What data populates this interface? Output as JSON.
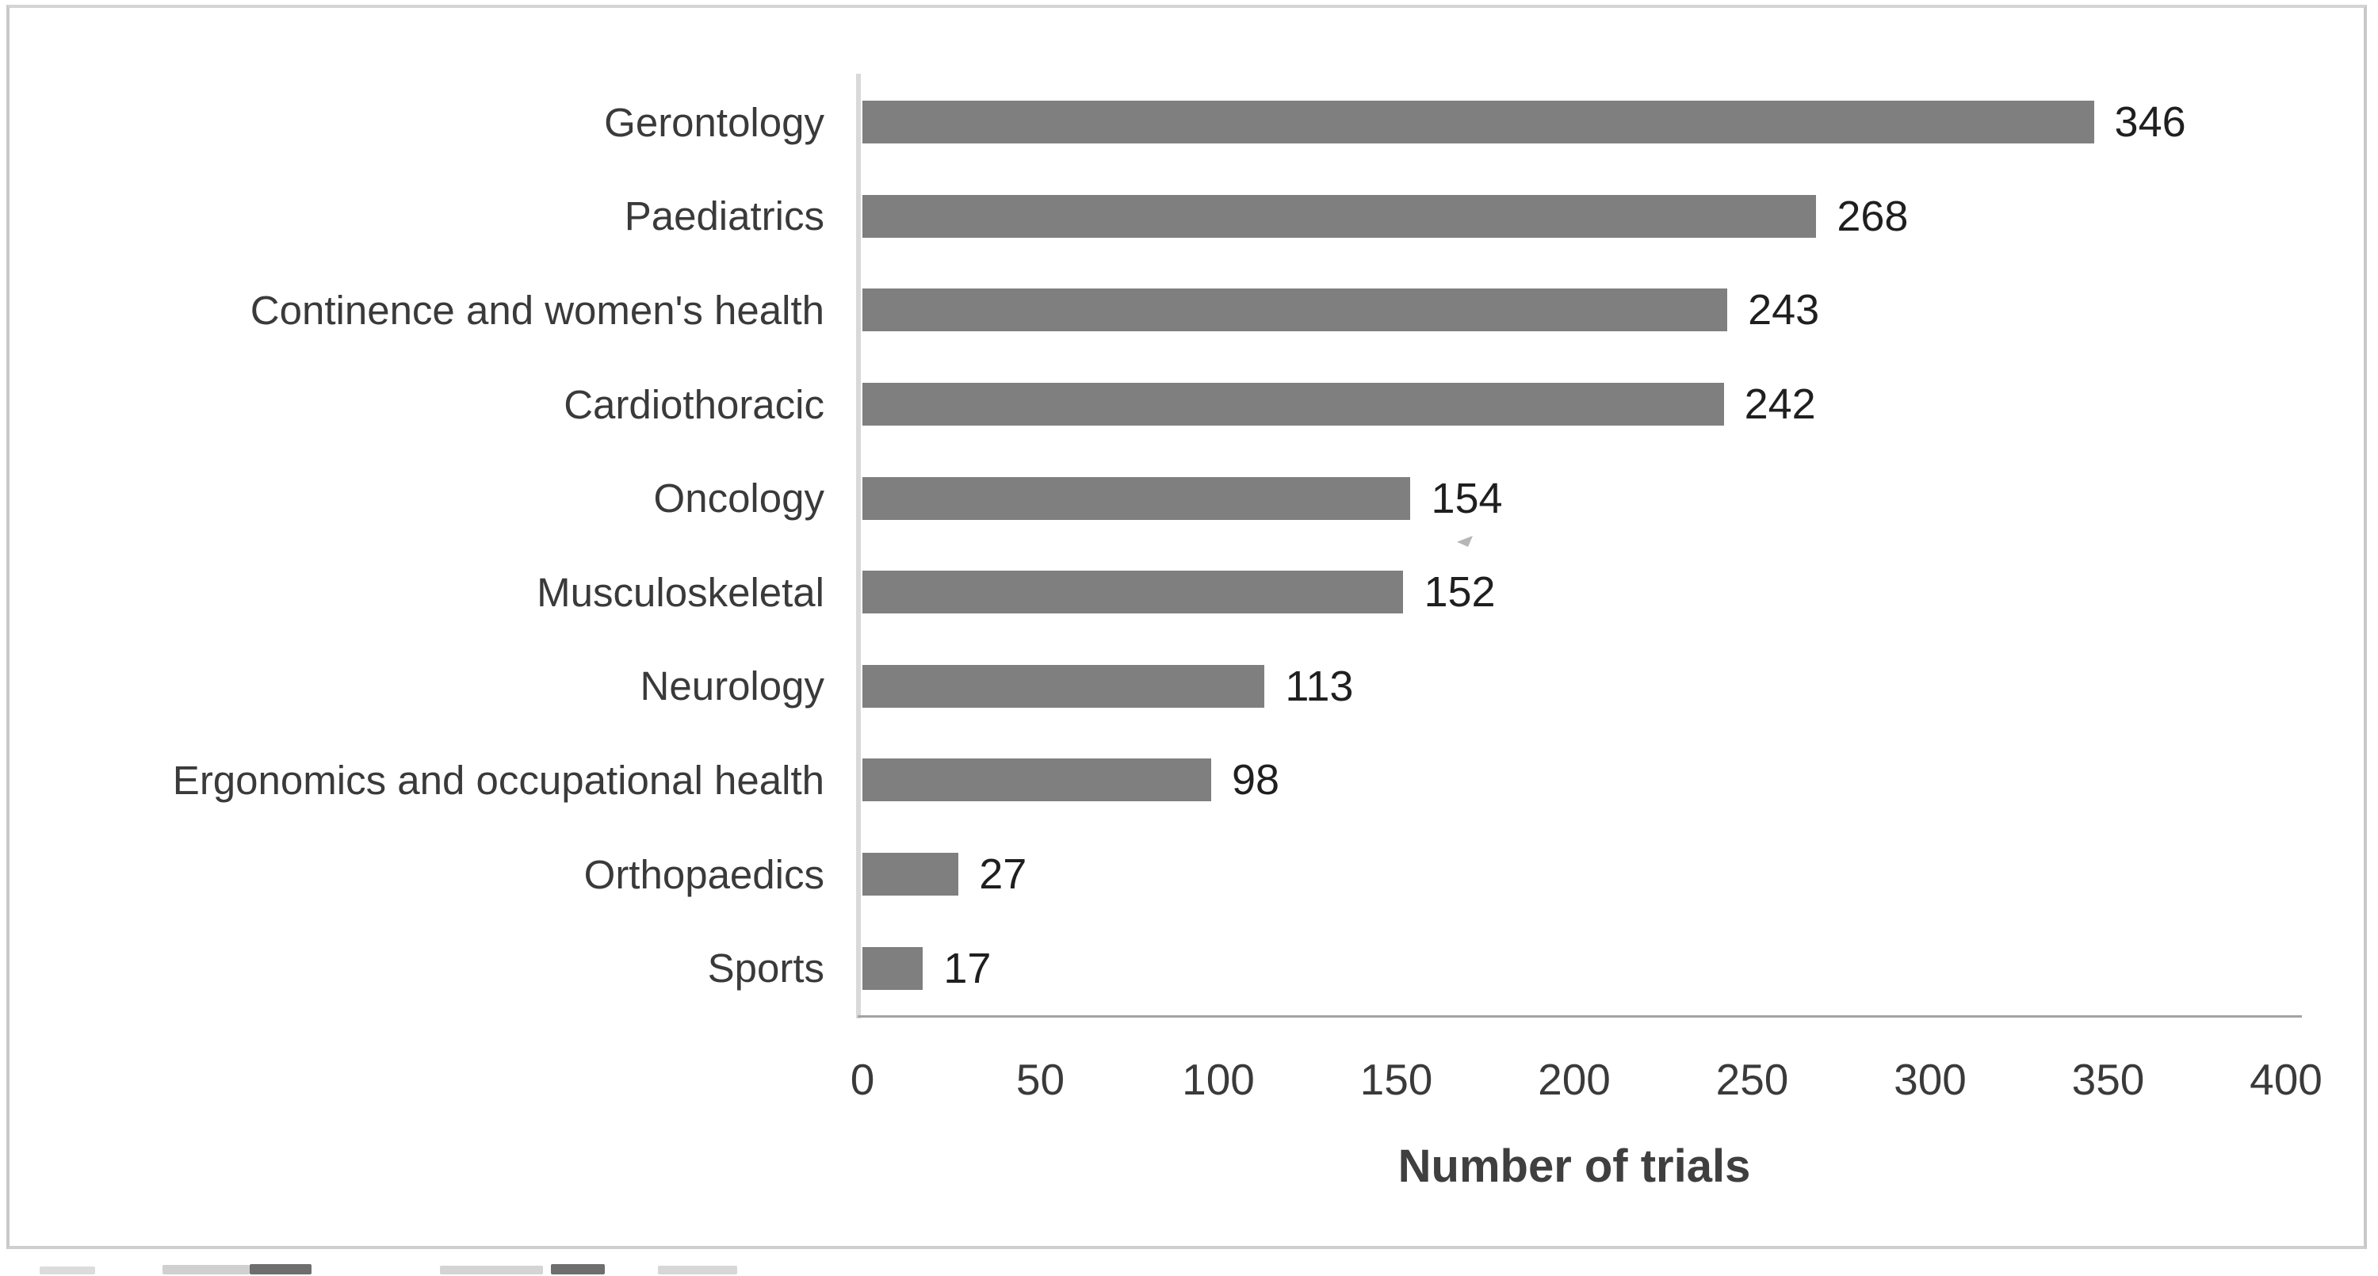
{
  "figure": {
    "background_color": "#ffffff",
    "border_color": "#c9c9c9"
  },
  "chart_data": {
    "type": "bar",
    "orientation": "horizontal",
    "title": "",
    "xlabel": "Number of trials",
    "ylabel": "",
    "categories": [
      "Gerontology",
      "Paediatrics",
      "Continence and women's health",
      "Cardiothoracic",
      "Oncology",
      "Musculoskeletal",
      "Neurology",
      "Ergonomics and occupational health",
      "Orthopaedics",
      "Sports"
    ],
    "values": [
      346,
      268,
      243,
      242,
      154,
      152,
      113,
      98,
      27,
      17
    ],
    "data_labels": [
      "346",
      "268",
      "243",
      "242",
      "154",
      "152",
      "113",
      "98",
      "27",
      "17"
    ],
    "xlim": [
      0,
      400
    ],
    "xticks": [
      0,
      50,
      100,
      150,
      200,
      250,
      300,
      350,
      400
    ],
    "grid": false,
    "legend": null,
    "bar_color": "#7f7f7f",
    "bar_label_color": "#1f1f1f",
    "category_label_color": "#3a3a3a",
    "tick_label_color": "#3a3a3a",
    "axis_title_color": "#3f3f3f",
    "y_axis_line_color": "#d9d9d9",
    "x_axis_line_color": "#a3a3a3"
  }
}
